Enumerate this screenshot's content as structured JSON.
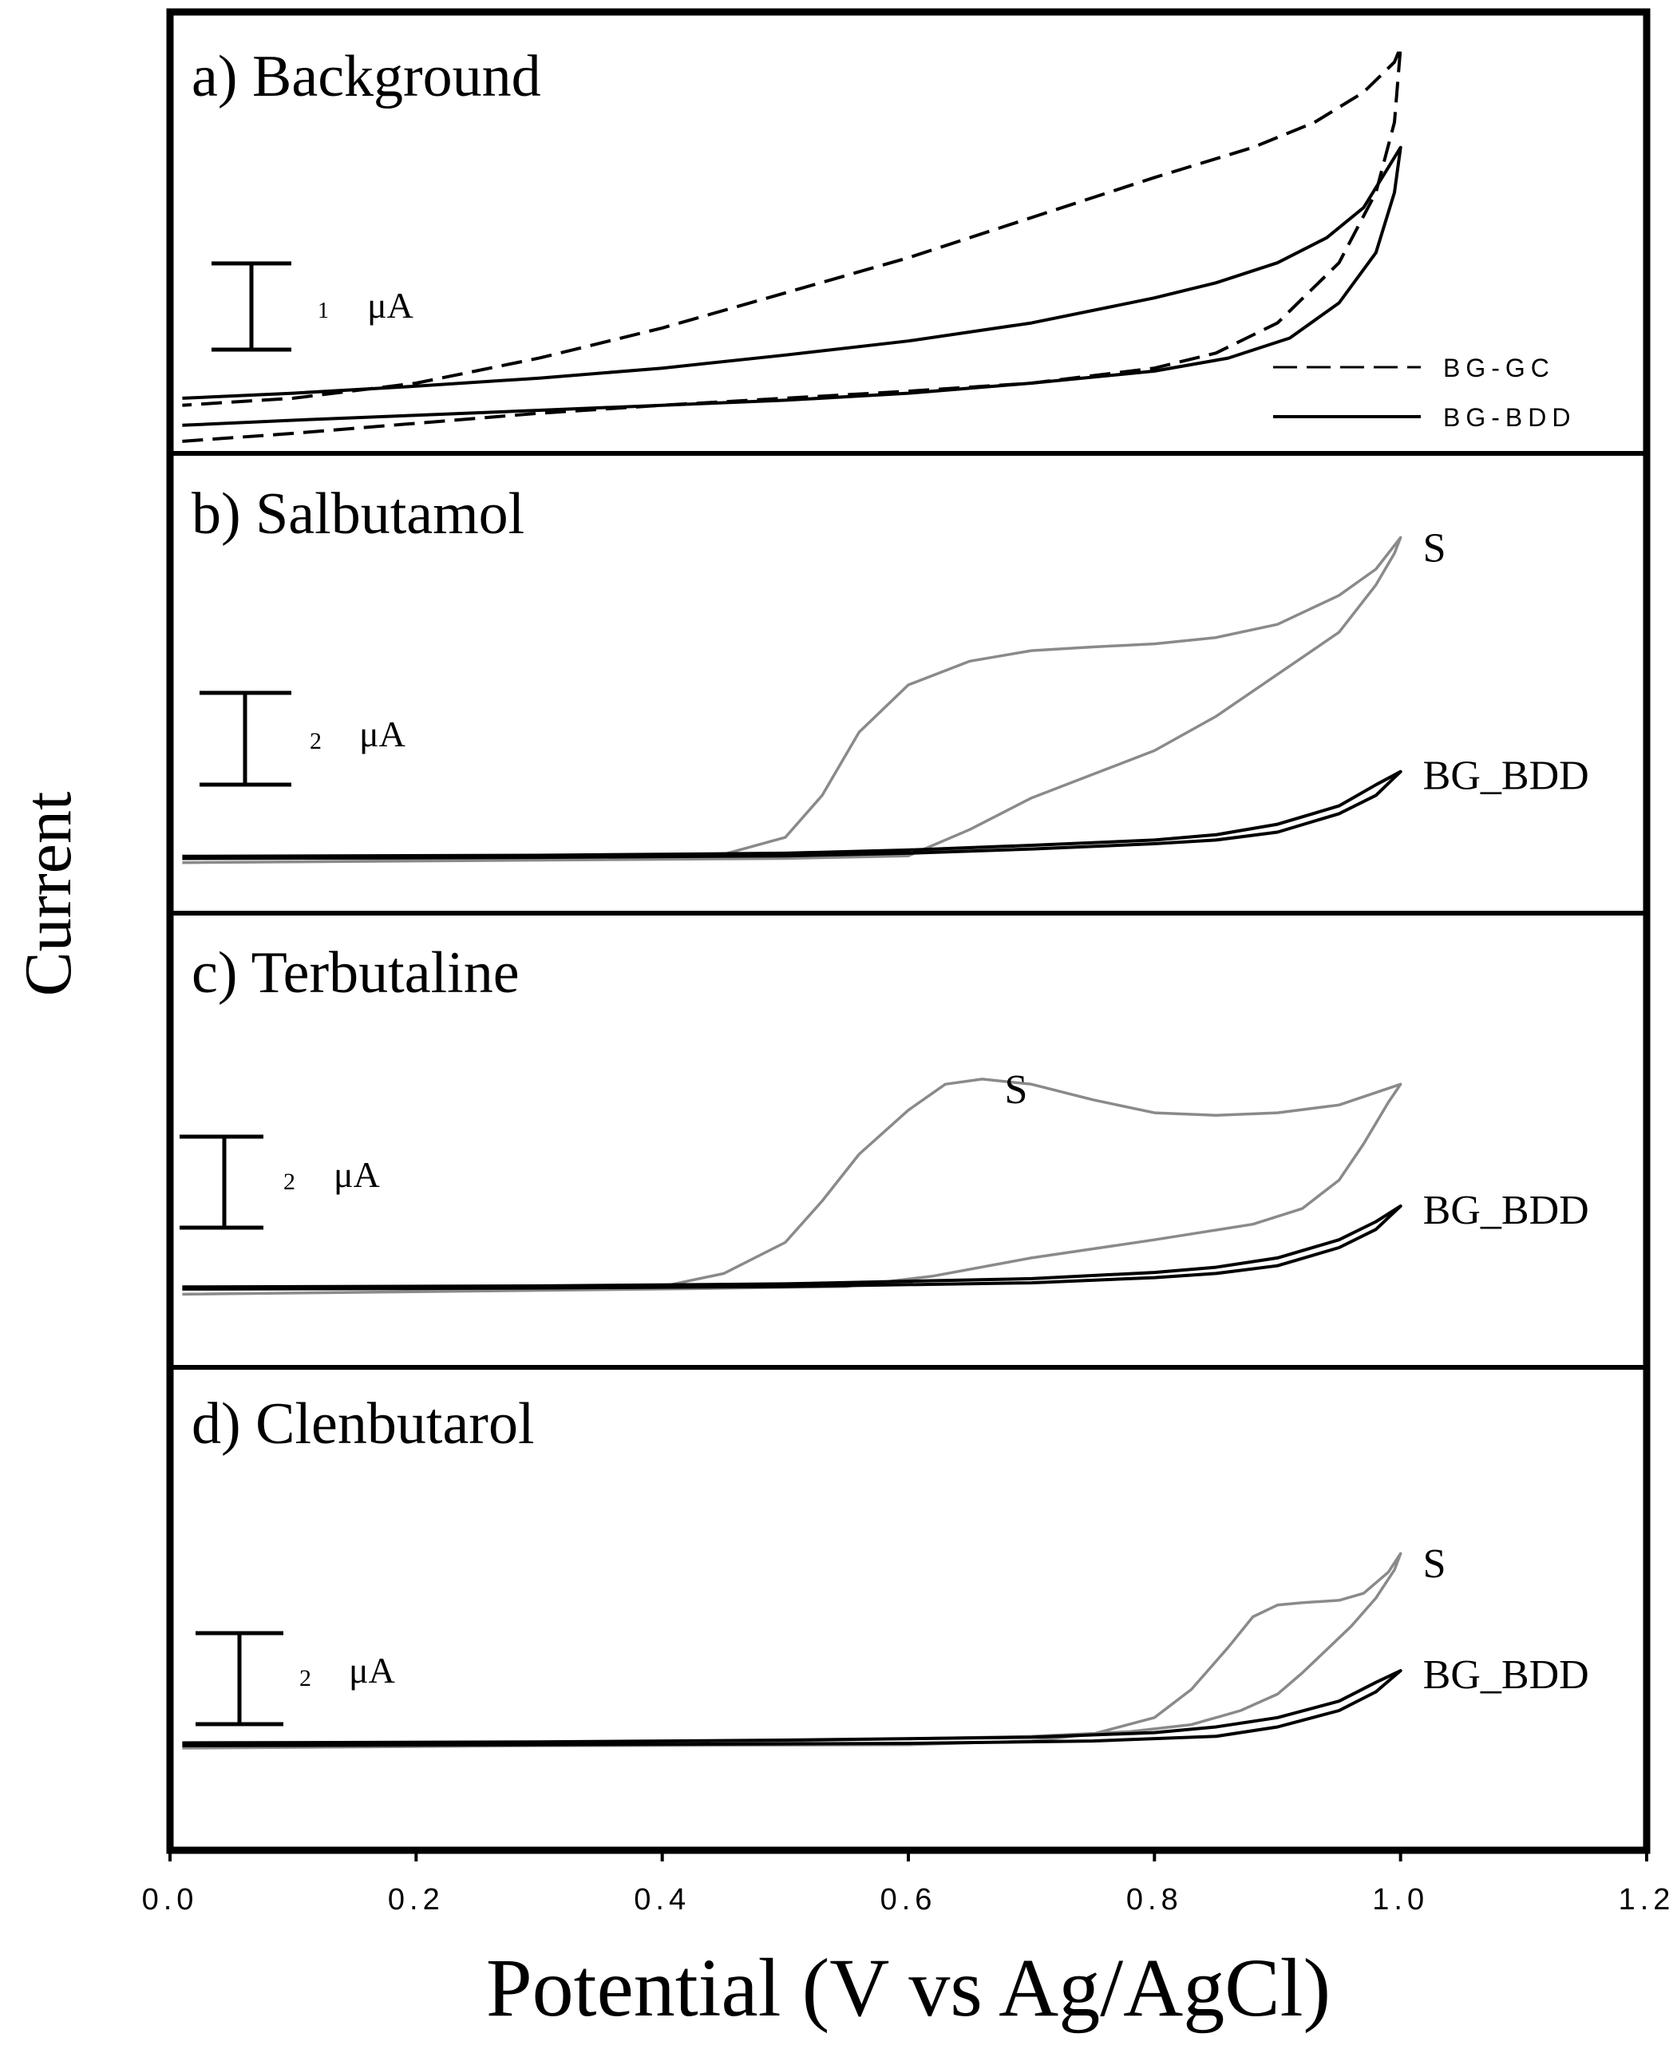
{
  "chart_data": {
    "type": "line",
    "xlabel": "Potential (V vs Ag/AgCl)",
    "ylabel": "Current",
    "xlim": [
      0.0,
      1.2
    ],
    "x_ticks": [
      "0.0",
      "0.2",
      "0.4",
      "0.6",
      "0.8",
      "1.0",
      "1.2"
    ],
    "x_tick_values": [
      0.0,
      0.2,
      0.4,
      0.6,
      0.8,
      1.0,
      1.2
    ],
    "colors": {
      "black": "#000000",
      "sample_gray": "#8a8a8a"
    },
    "panels": [
      {
        "id": "a",
        "title": "a) Background",
        "ylim": [
          0,
          4.4
        ],
        "scalebar": {
          "number": "1",
          "unit": "μA",
          "value": 1
        },
        "legend": [
          {
            "label": "BG-GC",
            "style": "dashed"
          },
          {
            "label": "BG-BDD",
            "style": "solid"
          }
        ],
        "series": [
          {
            "name": "BG-GC",
            "style": "dashed",
            "color": "#000000",
            "points": [
              [
                0.01,
                0.12
              ],
              [
                0.1,
                0.2
              ],
              [
                0.2,
                0.3
              ],
              [
                0.3,
                0.4
              ],
              [
                0.4,
                0.48
              ],
              [
                0.5,
                0.55
              ],
              [
                0.6,
                0.62
              ],
              [
                0.7,
                0.7
              ],
              [
                0.8,
                0.85
              ],
              [
                0.85,
                1.0
              ],
              [
                0.9,
                1.3
              ],
              [
                0.95,
                1.9
              ],
              [
                0.98,
                2.6
              ],
              [
                0.995,
                3.3
              ],
              [
                1.0,
                4.05
              ],
              [
                0.995,
                3.9
              ],
              [
                0.97,
                3.6
              ],
              [
                0.93,
                3.3
              ],
              [
                0.88,
                3.05
              ],
              [
                0.8,
                2.75
              ],
              [
                0.7,
                2.35
              ],
              [
                0.6,
                1.95
              ],
              [
                0.5,
                1.6
              ],
              [
                0.4,
                1.25
              ],
              [
                0.3,
                0.95
              ],
              [
                0.2,
                0.7
              ],
              [
                0.1,
                0.55
              ],
              [
                0.01,
                0.48
              ]
            ]
          },
          {
            "name": "BG-BDD",
            "style": "solid",
            "color": "#000000",
            "points": [
              [
                0.01,
                0.28
              ],
              [
                0.1,
                0.33
              ],
              [
                0.2,
                0.38
              ],
              [
                0.3,
                0.43
              ],
              [
                0.4,
                0.48
              ],
              [
                0.5,
                0.53
              ],
              [
                0.6,
                0.6
              ],
              [
                0.7,
                0.7
              ],
              [
                0.8,
                0.82
              ],
              [
                0.86,
                0.95
              ],
              [
                0.91,
                1.15
              ],
              [
                0.95,
                1.5
              ],
              [
                0.98,
                2.0
              ],
              [
                0.995,
                2.6
              ],
              [
                1.0,
                3.05
              ],
              [
                0.99,
                2.85
              ],
              [
                0.97,
                2.45
              ],
              [
                0.94,
                2.15
              ],
              [
                0.9,
                1.9
              ],
              [
                0.85,
                1.7
              ],
              [
                0.8,
                1.55
              ],
              [
                0.7,
                1.3
              ],
              [
                0.6,
                1.12
              ],
              [
                0.5,
                0.98
              ],
              [
                0.4,
                0.85
              ],
              [
                0.3,
                0.75
              ],
              [
                0.2,
                0.67
              ],
              [
                0.1,
                0.6
              ],
              [
                0.01,
                0.55
              ]
            ]
          }
        ]
      },
      {
        "id": "b",
        "title": "b) Salbutamol",
        "ylim": [
          -1.04,
          7.7
        ],
        "scalebar": {
          "number": "2",
          "unit": "μA",
          "value": 2
        },
        "series": [
          {
            "name": "S",
            "label": "S",
            "style": "solid",
            "color": "#8a8a8a",
            "points": [
              [
                0.01,
                0.0
              ],
              [
                0.2,
                0.0
              ],
              [
                0.4,
                0.02
              ],
              [
                0.45,
                0.08
              ],
              [
                0.5,
                0.4
              ],
              [
                0.53,
                1.2
              ],
              [
                0.56,
                2.4
              ],
              [
                0.6,
                3.3
              ],
              [
                0.65,
                3.75
              ],
              [
                0.7,
                3.95
              ],
              [
                0.75,
                4.02
              ],
              [
                0.8,
                4.08
              ],
              [
                0.85,
                4.2
              ],
              [
                0.9,
                4.45
              ],
              [
                0.95,
                5.0
              ],
              [
                0.98,
                5.5
              ],
              [
                1.0,
                6.1
              ],
              [
                0.995,
                5.8
              ],
              [
                0.98,
                5.2
              ],
              [
                0.95,
                4.3
              ],
              [
                0.9,
                3.5
              ],
              [
                0.85,
                2.7
              ],
              [
                0.8,
                2.05
              ],
              [
                0.75,
                1.6
              ],
              [
                0.7,
                1.15
              ],
              [
                0.65,
                0.55
              ],
              [
                0.6,
                0.05
              ],
              [
                0.5,
                0.0
              ],
              [
                0.01,
                -0.08
              ]
            ]
          },
          {
            "name": "BG_BDD",
            "label": "BG_BDD",
            "style": "solid",
            "color": "#000000",
            "points": [
              [
                0.01,
                0.0
              ],
              [
                0.3,
                0.02
              ],
              [
                0.5,
                0.05
              ],
              [
                0.6,
                0.1
              ],
              [
                0.7,
                0.18
              ],
              [
                0.8,
                0.28
              ],
              [
                0.85,
                0.35
              ],
              [
                0.9,
                0.5
              ],
              [
                0.95,
                0.85
              ],
              [
                0.98,
                1.2
              ],
              [
                1.0,
                1.65
              ],
              [
                0.98,
                1.4
              ],
              [
                0.95,
                1.0
              ],
              [
                0.9,
                0.65
              ],
              [
                0.85,
                0.45
              ],
              [
                0.8,
                0.35
              ],
              [
                0.7,
                0.25
              ],
              [
                0.6,
                0.16
              ],
              [
                0.5,
                0.1
              ],
              [
                0.3,
                0.06
              ],
              [
                0.01,
                0.04
              ]
            ]
          }
        ]
      },
      {
        "id": "c",
        "title": "c) Terbutaline",
        "ylim": [
          -1.51,
          7.25
        ],
        "scalebar": {
          "number": "2",
          "unit": "μA",
          "value": 2
        },
        "series": [
          {
            "name": "S",
            "label": "S",
            "style": "solid",
            "color": "#8a8a8a",
            "points": [
              [
                0.01,
                0.0
              ],
              [
                0.2,
                0.0
              ],
              [
                0.4,
                0.05
              ],
              [
                0.45,
                0.3
              ],
              [
                0.5,
                0.9
              ],
              [
                0.53,
                1.7
              ],
              [
                0.56,
                2.6
              ],
              [
                0.6,
                3.45
              ],
              [
                0.63,
                3.95
              ],
              [
                0.66,
                4.05
              ],
              [
                0.7,
                3.95
              ],
              [
                0.75,
                3.65
              ],
              [
                0.8,
                3.4
              ],
              [
                0.85,
                3.35
              ],
              [
                0.9,
                3.4
              ],
              [
                0.95,
                3.55
              ],
              [
                1.0,
                3.95
              ],
              [
                0.99,
                3.6
              ],
              [
                0.97,
                2.8
              ],
              [
                0.95,
                2.1
              ],
              [
                0.92,
                1.55
              ],
              [
                0.88,
                1.25
              ],
              [
                0.8,
                0.95
              ],
              [
                0.7,
                0.6
              ],
              [
                0.62,
                0.25
              ],
              [
                0.55,
                0.05
              ],
              [
                0.4,
                0.0
              ],
              [
                0.01,
                -0.1
              ]
            ]
          },
          {
            "name": "BG_BDD",
            "label": "BG_BDD",
            "style": "solid",
            "color": "#000000",
            "points": [
              [
                0.01,
                0.0
              ],
              [
                0.3,
                0.02
              ],
              [
                0.5,
                0.05
              ],
              [
                0.7,
                0.12
              ],
              [
                0.8,
                0.22
              ],
              [
                0.85,
                0.3
              ],
              [
                0.9,
                0.45
              ],
              [
                0.95,
                0.8
              ],
              [
                0.98,
                1.15
              ],
              [
                1.0,
                1.6
              ],
              [
                0.98,
                1.3
              ],
              [
                0.95,
                0.95
              ],
              [
                0.9,
                0.6
              ],
              [
                0.85,
                0.42
              ],
              [
                0.8,
                0.32
              ],
              [
                0.7,
                0.2
              ],
              [
                0.5,
                0.1
              ],
              [
                0.3,
                0.06
              ],
              [
                0.01,
                0.04
              ]
            ]
          }
        ]
      },
      {
        "id": "d",
        "title": "d) Clenbutarol",
        "ylim": [
          -2.23,
          8.07
        ],
        "scalebar": {
          "number": "2",
          "unit": "μA",
          "value": 2
        },
        "series": [
          {
            "name": "S",
            "label": "S",
            "style": "solid",
            "color": "#8a8a8a",
            "points": [
              [
                0.01,
                -0.05
              ],
              [
                0.3,
                0.0
              ],
              [
                0.6,
                0.02
              ],
              [
                0.7,
                0.1
              ],
              [
                0.75,
                0.25
              ],
              [
                0.8,
                0.6
              ],
              [
                0.83,
                1.2
              ],
              [
                0.86,
                2.1
              ],
              [
                0.88,
                2.75
              ],
              [
                0.9,
                3.0
              ],
              [
                0.92,
                3.05
              ],
              [
                0.95,
                3.1
              ],
              [
                0.97,
                3.25
              ],
              [
                0.99,
                3.7
              ],
              [
                1.0,
                4.1
              ],
              [
                0.995,
                3.75
              ],
              [
                0.98,
                3.15
              ],
              [
                0.96,
                2.55
              ],
              [
                0.94,
                2.05
              ],
              [
                0.92,
                1.55
              ],
              [
                0.9,
                1.1
              ],
              [
                0.87,
                0.75
              ],
              [
                0.83,
                0.45
              ],
              [
                0.78,
                0.3
              ],
              [
                0.7,
                0.2
              ],
              [
                0.5,
                0.1
              ],
              [
                0.01,
                0.05
              ]
            ]
          },
          {
            "name": "BG_BDD",
            "label": "BG_BDD",
            "style": "solid",
            "color": "#000000",
            "points": [
              [
                0.01,
                0.0
              ],
              [
                0.3,
                0.02
              ],
              [
                0.6,
                0.05
              ],
              [
                0.75,
                0.1
              ],
              [
                0.85,
                0.2
              ],
              [
                0.9,
                0.4
              ],
              [
                0.95,
                0.75
              ],
              [
                0.98,
                1.15
              ],
              [
                1.0,
                1.6
              ],
              [
                0.98,
                1.35
              ],
              [
                0.95,
                0.95
              ],
              [
                0.9,
                0.6
              ],
              [
                0.85,
                0.4
              ],
              [
                0.8,
                0.28
              ],
              [
                0.7,
                0.18
              ],
              [
                0.5,
                0.12
              ],
              [
                0.3,
                0.08
              ],
              [
                0.01,
                0.06
              ]
            ]
          }
        ]
      }
    ]
  }
}
